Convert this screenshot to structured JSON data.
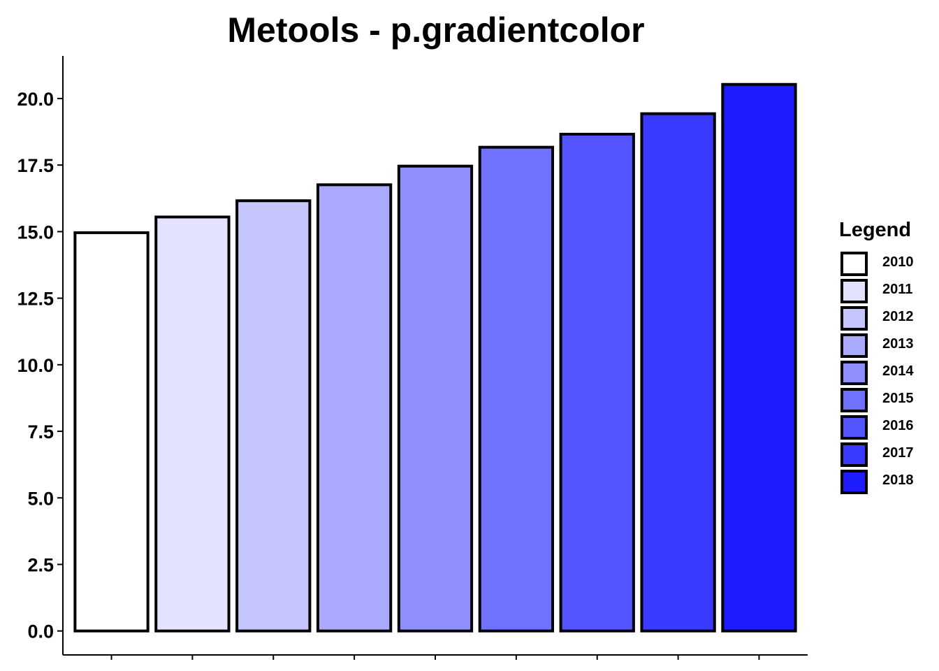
{
  "chart_data": {
    "type": "bar",
    "title": "Metools - p.gradientcolor",
    "xlabel": "",
    "ylabel": "",
    "categories": [
      "2010",
      "2011",
      "2012",
      "2013",
      "2014",
      "2015",
      "2016",
      "2017",
      "2018"
    ],
    "values": [
      14.96,
      15.55,
      16.16,
      16.76,
      17.46,
      18.17,
      18.66,
      19.43,
      20.53
    ],
    "colors": [
      "#FFFFFF",
      "#E3E3FF",
      "#C6C6FF",
      "#AAAAFF",
      "#8E8EFF",
      "#7171FF",
      "#5555FF",
      "#3939FF",
      "#1C1CFF"
    ],
    "border_color": "#000000",
    "ylim": [
      -0.9,
      21.6
    ],
    "yticks": [
      0.0,
      2.5,
      5.0,
      7.5,
      10.0,
      12.5,
      15.0,
      17.5,
      20.0
    ],
    "ytick_labels": [
      "0.0",
      "2.5",
      "5.0",
      "7.5",
      "10.0",
      "12.5",
      "15.0",
      "17.5",
      "20.0"
    ],
    "xtick_labels_shown": false,
    "grid": false,
    "legend": {
      "title": "Legend",
      "placement": "right",
      "entries": [
        "2010",
        "2011",
        "2012",
        "2013",
        "2014",
        "2015",
        "2016",
        "2017",
        "2018"
      ]
    }
  }
}
